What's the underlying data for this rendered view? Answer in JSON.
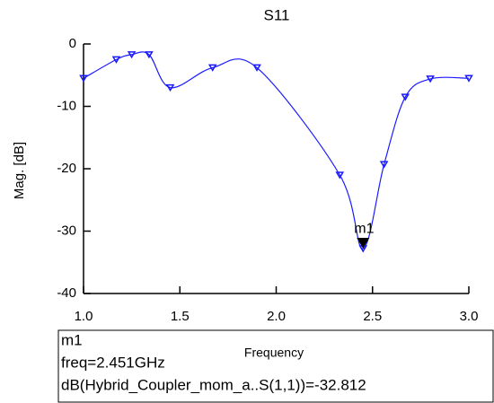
{
  "chart_data": {
    "type": "line",
    "title": "S11",
    "y_label": "Mag. [dB]",
    "x_label": "Frequency",
    "x": [
      1.0,
      1.17,
      1.25,
      1.34,
      1.45,
      1.67,
      1.9,
      2.33,
      2.451,
      2.56,
      2.67,
      2.8,
      3.0
    ],
    "series": [
      {
        "color": "#1a1aff",
        "values": [
          -5.5,
          -2.5,
          -1.7,
          -1.7,
          -7.0,
          -3.8,
          -3.8,
          -21.0,
          -32.8,
          -19.3,
          -8.5,
          -5.6,
          -5.5
        ]
      }
    ],
    "xlim": [
      1.0,
      3.0
    ],
    "ylim": [
      -40,
      0
    ],
    "xticks": [
      {
        "value": 1.0,
        "label": "1.0"
      },
      1.5,
      {
        "value": 2.0,
        "label": "2.0"
      },
      2.5,
      {
        "value": 3.0,
        "label": "3.0"
      }
    ],
    "yticks": [
      0,
      -10,
      -20,
      -30,
      -40
    ],
    "marker": {
      "name": "m1",
      "x": 2.451,
      "y": -32.812,
      "color": "#000000",
      "readout": [
        "m1",
        "freq=2.451GHz",
        "dB(Hybrid_Coupler_mom_a..S(1,1))=-32.812"
      ]
    }
  }
}
